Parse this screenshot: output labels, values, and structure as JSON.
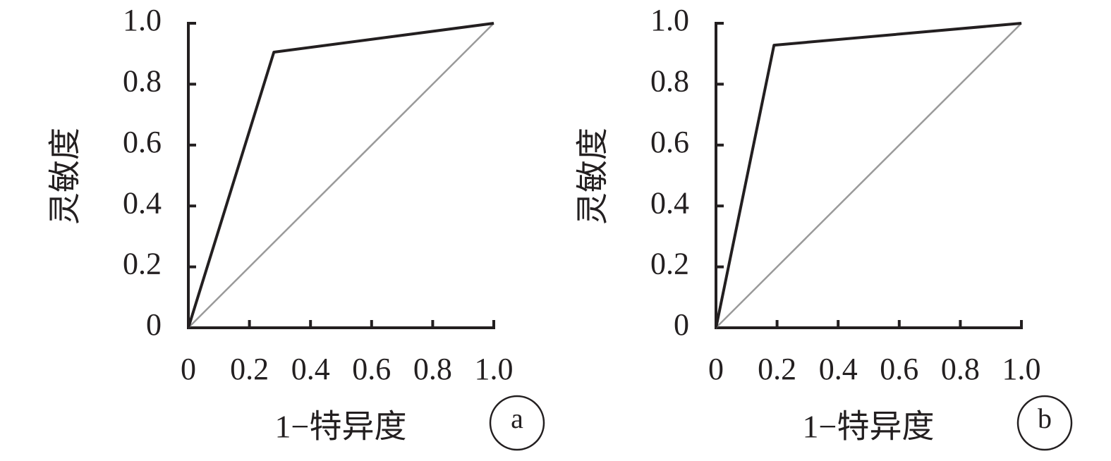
{
  "chart_data": [
    {
      "type": "line",
      "xlabel": "1−特异度",
      "ylabel": "灵敏度",
      "annotation": "a",
      "xlim": [
        0,
        1
      ],
      "ylim": [
        0,
        1
      ],
      "xticks": [
        0,
        0.2,
        0.4,
        0.6,
        0.8,
        {
          "value": 1,
          "label": "1.0"
        }
      ],
      "yticks": [
        0,
        0.2,
        0.4,
        0.6,
        0.8,
        {
          "value": 1,
          "label": "1.0"
        }
      ],
      "series": [
        {
          "color": "#231f20",
          "x": [
            0,
            0.28,
            1
          ],
          "values": [
            0,
            0.905,
            1
          ]
        },
        {
          "color": "#9a9a9a",
          "x": [
            0,
            1
          ],
          "values": [
            0,
            1
          ]
        }
      ]
    },
    {
      "type": "line",
      "xlabel": "1−特异度",
      "ylabel": "灵敏度",
      "annotation": "b",
      "xlim": [
        0,
        1
      ],
      "ylim": [
        0,
        1
      ],
      "xticks": [
        0,
        0.2,
        0.4,
        0.6,
        0.8,
        {
          "value": 1,
          "label": "1.0"
        }
      ],
      "yticks": [
        0,
        0.2,
        0.4,
        0.6,
        0.8,
        {
          "value": 1,
          "label": "1.0"
        }
      ],
      "series": [
        {
          "color": "#231f20",
          "x": [
            0,
            0.19,
            1
          ],
          "values": [
            0,
            0.928,
            1
          ]
        },
        {
          "color": "#9a9a9a",
          "x": [
            0,
            1
          ],
          "values": [
            0,
            1
          ]
        }
      ]
    }
  ]
}
